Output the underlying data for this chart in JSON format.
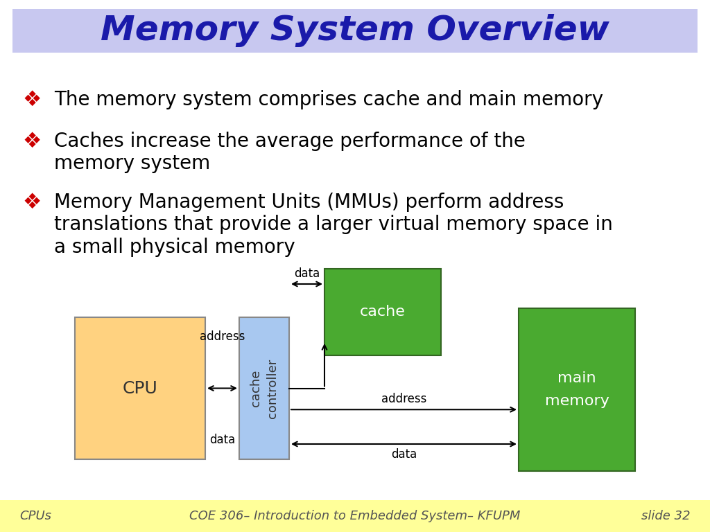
{
  "title": "Memory System Overview",
  "title_color": "#1a1aaa",
  "title_bg_color": "#c8c8f0",
  "body_bg_color": "#ffffff",
  "footer_bg_color": "#ffff99",
  "bullet_points": [
    "The memory system comprises cache and main memory",
    "Caches increase the average performance of the\nmemory system",
    "Memory Management Units (MMUs) perform address\ntranslations that provide a larger virtual memory space in\na small physical memory"
  ],
  "bullet_color": "#cc0000",
  "text_color": "#000000",
  "footer_left": "CPUs",
  "footer_center": "COE 306– Introduction to Embedded System– KFUPM",
  "footer_right": "slide 32",
  "cpu_color": "#ffd280",
  "cache_controller_color": "#a8c8f0",
  "cache_color": "#4aaa30",
  "main_memory_color": "#4aaa30",
  "cpu_label": "CPU",
  "cc_label": "cache\ncontroller",
  "cache_label": "cache",
  "mm_label": "main\nmemory"
}
